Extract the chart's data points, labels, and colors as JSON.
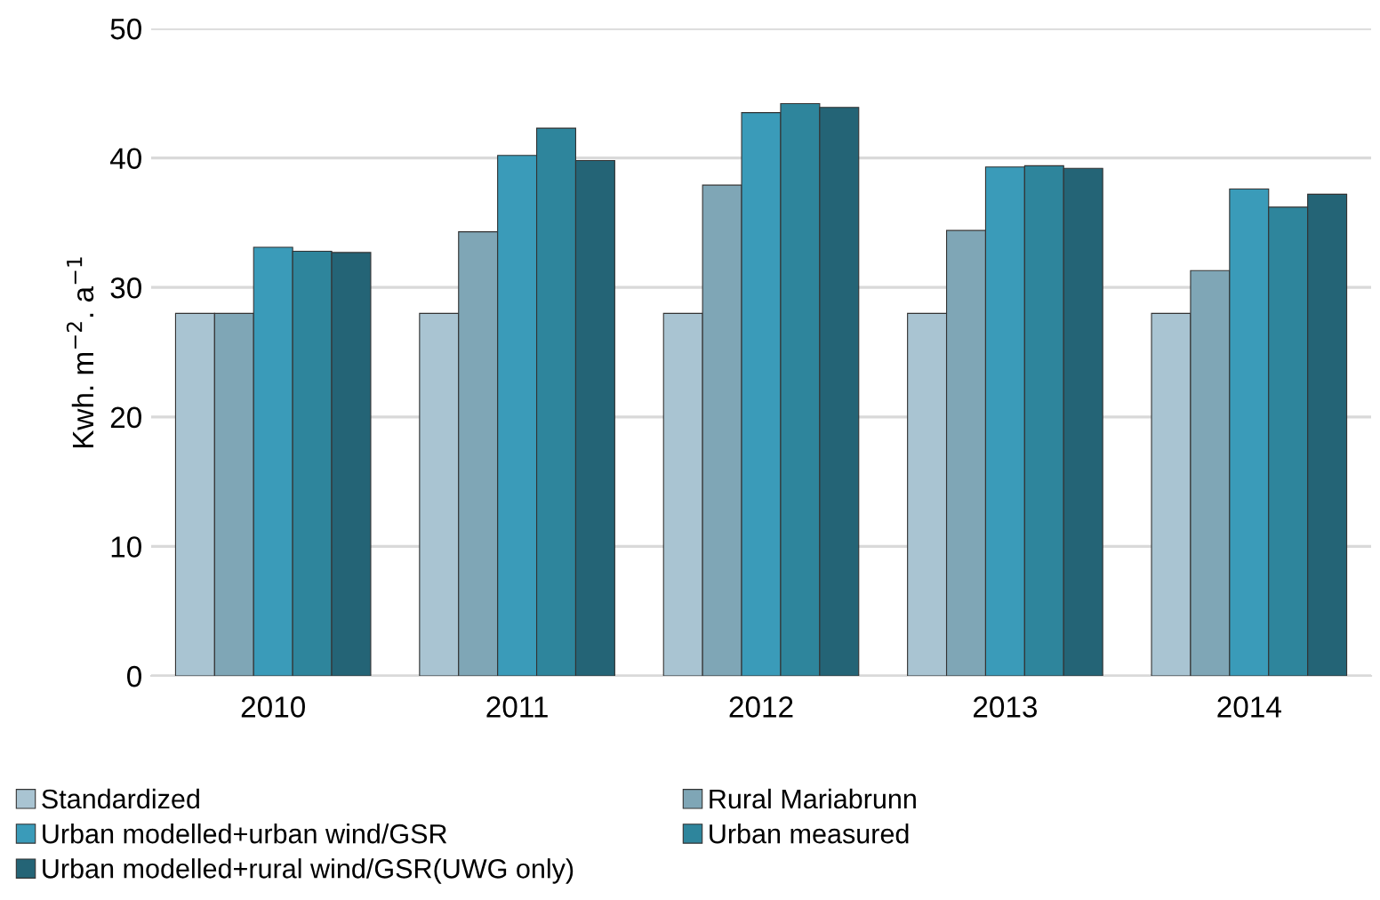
{
  "chart_data": {
    "type": "bar",
    "ylabel": "Kwh. m$^{−2}$. a$^{−1}$",
    "categories": [
      "2010",
      "2011",
      "2012",
      "2013",
      "2014"
    ],
    "series": [
      {
        "name": "Standardized",
        "color": "#a9c4d2",
        "values": [
          28,
          28,
          28,
          28,
          28
        ]
      },
      {
        "name": "Rural Mariabrunn",
        "color": "#7fa6b6",
        "values": [
          28,
          34.3,
          37.9,
          34.4,
          31.3
        ]
      },
      {
        "name": "Urban modelled+urban wind/GSR",
        "color": "#3a9bb9",
        "values": [
          33.1,
          40.2,
          43.5,
          39.3,
          37.6
        ]
      },
      {
        "name": "Urban measured",
        "color": "#2e859c",
        "values": [
          32.8,
          42.3,
          44.2,
          39.4,
          36.2
        ]
      },
      {
        "name": "Urban modelled+rural wind/GSR(UWG only)",
        "color": "#246476",
        "values": [
          32.7,
          39.8,
          43.9,
          39.2,
          37.2
        ]
      }
    ],
    "ylim": [
      0,
      50
    ],
    "yticks": [
      0,
      10,
      20,
      30,
      40,
      50
    ],
    "grid": "y",
    "legend": "bottom"
  }
}
